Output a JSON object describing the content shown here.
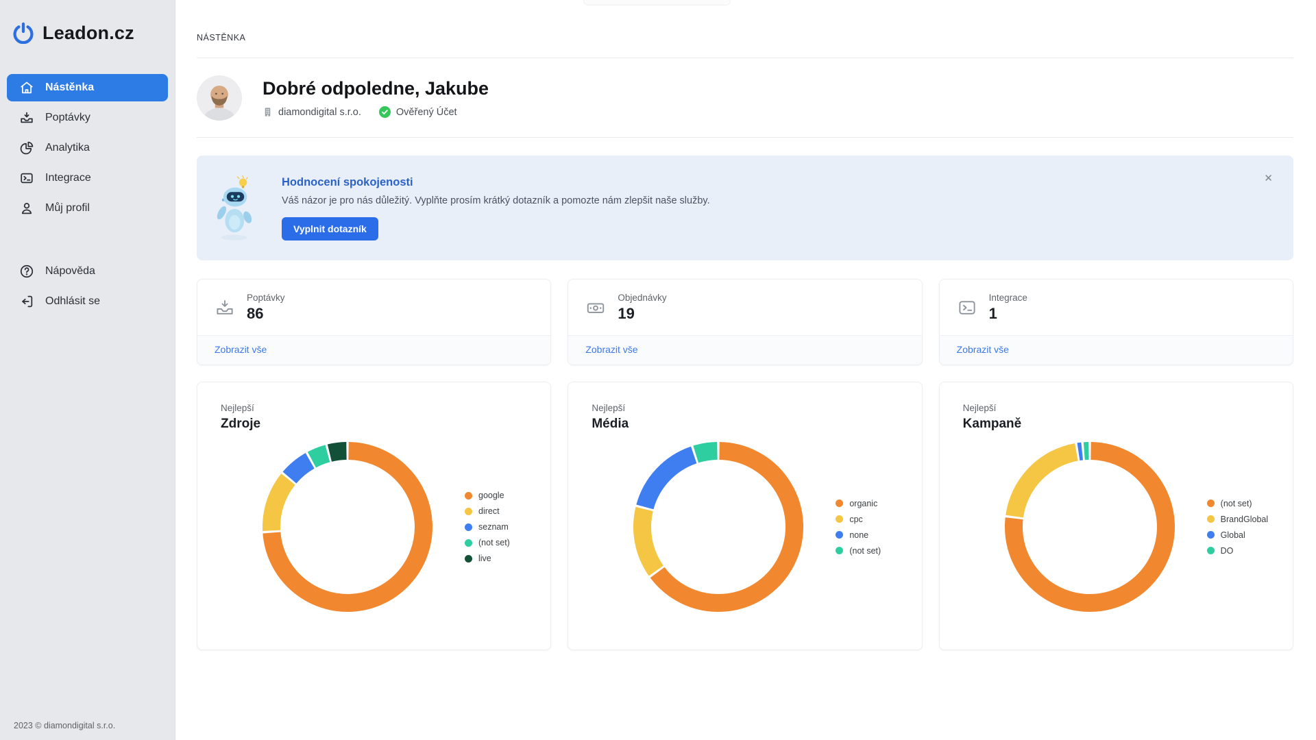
{
  "brand": {
    "name": "Leadon.cz"
  },
  "sidebar": {
    "items": [
      {
        "label": "Nástěnka",
        "active": true
      },
      {
        "label": "Poptávky",
        "active": false
      },
      {
        "label": "Analytika",
        "active": false
      },
      {
        "label": "Integrace",
        "active": false
      },
      {
        "label": "Můj profil",
        "active": false
      }
    ],
    "secondary_items": [
      {
        "label": "Nápověda"
      },
      {
        "label": "Odhlásit se"
      }
    ],
    "footer": "2023 © diamondigital s.r.o."
  },
  "breadcrumb": "NÁSTĚNKA",
  "header": {
    "greeting": "Dobré odpoledne, Jakube",
    "company": "diamondigital s.r.o.",
    "verified_badge": "Ověřený Účet"
  },
  "banner": {
    "title": "Hodnocení spokojenosti",
    "message": "Váš názor je pro nás důležitý. Vyplňte prosím krátký dotazník a pomozte nám zlepšit naše služby.",
    "button_label": "Vyplnit dotazník",
    "close_label": "✕"
  },
  "stats": [
    {
      "label": "Poptávky",
      "value": "86",
      "link_label": "Zobrazit vše",
      "icon": "inbox-icon"
    },
    {
      "label": "Objednávky",
      "value": "19",
      "link_label": "Zobrazit vše",
      "icon": "banknote-icon"
    },
    {
      "label": "Integrace",
      "value": "1",
      "link_label": "Zobrazit vše",
      "icon": "terminal-icon"
    }
  ],
  "chart_data": [
    {
      "type": "pie",
      "subtitle": "Nejlepší",
      "title": "Zdroje",
      "legend_position": "right",
      "labels": [
        "google",
        "direct",
        "seznam",
        "(not set)",
        "live"
      ],
      "values": [
        74,
        12,
        6,
        4,
        4
      ],
      "colors": [
        "#F1882F",
        "#F5C544",
        "#3E7EF0",
        "#2FCEA0",
        "#135038"
      ]
    },
    {
      "type": "pie",
      "subtitle": "Nejlepší",
      "title": "Média",
      "legend_position": "right",
      "labels": [
        "organic",
        "cpc",
        "none",
        "(not set)"
      ],
      "values": [
        65,
        14,
        16,
        5
      ],
      "colors": [
        "#F1882F",
        "#F5C544",
        "#3E7EF0",
        "#2FCEA0"
      ]
    },
    {
      "type": "pie",
      "subtitle": "Nejlepší",
      "title": "Kampaně",
      "legend_position": "right",
      "labels": [
        "(not set)",
        "BrandGlobal",
        "Global",
        "DO"
      ],
      "values": [
        77,
        20.4,
        1.2,
        1.4
      ],
      "colors": [
        "#F1882F",
        "#F5C544",
        "#3E7EF0",
        "#2FCEA0"
      ]
    }
  ],
  "colors": {
    "accent": "#2B6DE8",
    "active_nav": "#2D7BE5",
    "link": "#3B78E7",
    "banner_bg": "#E9EFF9",
    "banner_title": "#2A62C6",
    "verified_green": "#35C75A",
    "sidebar_bg": "#E6E8EC"
  }
}
